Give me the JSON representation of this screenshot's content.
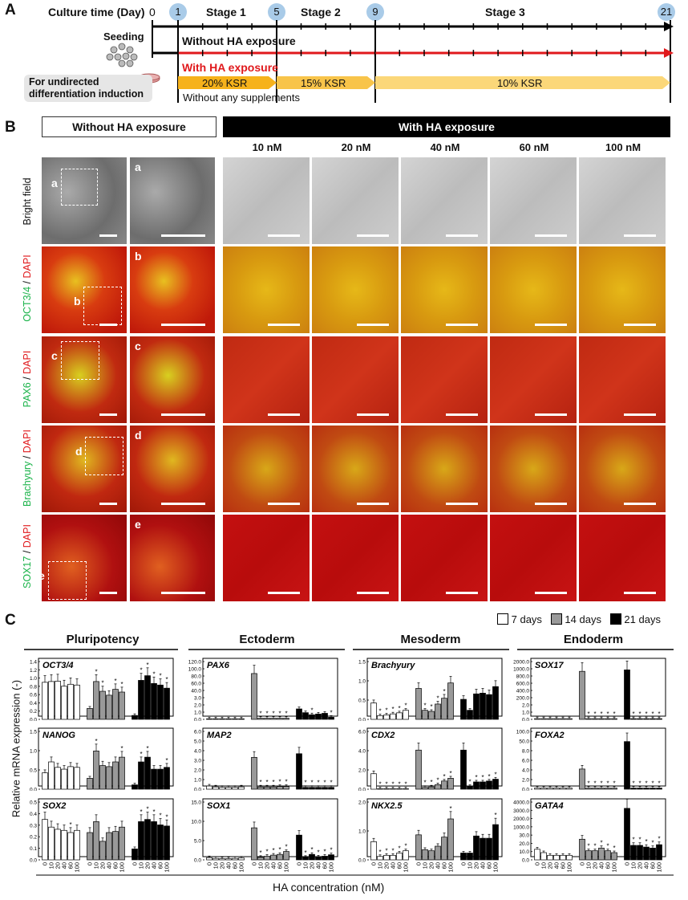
{
  "panelA": {
    "letter": "A",
    "culture_label": "Culture time (Day)",
    "day0": "0",
    "days": [
      "1",
      "5",
      "9",
      "21"
    ],
    "stages": [
      "Stage 1",
      "Stage 2",
      "Stage 3"
    ],
    "seeding": "Seeding",
    "without_label": "Without HA exposure",
    "with_label": "With HA exposure",
    "ksr": [
      "20% KSR",
      "15% KSR",
      "10% KSR"
    ],
    "undirected": "For undirected\ndifferentiation induction",
    "no_supp": "Without any supplements",
    "colors": {
      "black": "#000000",
      "red": "#e0191c",
      "orange": "#f6b21b",
      "light_orange": "#fbd779",
      "circle": "#a9cbe8"
    }
  },
  "panelB": {
    "letter": "B",
    "without_header": "Without HA exposure",
    "with_header": "With HA exposure",
    "concentrations": [
      "10 nM",
      "20 nM",
      "40 nM",
      "60 nM",
      "100 nM"
    ],
    "rows": [
      {
        "marker": "Bright field",
        "dapi": "",
        "inset": "a"
      },
      {
        "marker": "OCT3/4",
        "dapi": "DAPI",
        "inset": "b"
      },
      {
        "marker": "PAX6",
        "dapi": "DAPI",
        "inset": "c"
      },
      {
        "marker": "Brachyury",
        "dapi": "DAPI",
        "inset": "d"
      },
      {
        "marker": "SOX17",
        "dapi": "DAPI",
        "inset": "e"
      }
    ],
    "slash": " /"
  },
  "panelC": {
    "letter": "C",
    "legend": [
      "7 days",
      "14 days",
      "21 days"
    ],
    "ylabel": "Relative mRNA expression (-)",
    "xlabel": "HA concentration (nM)",
    "x_ticks": [
      "0",
      "10",
      "20",
      "40",
      "60",
      "100"
    ],
    "groups": [
      "Pluripotency",
      "Ectoderm",
      "Mesoderm",
      "Endoderm"
    ]
  },
  "chart_data": [
    {
      "type": "bar",
      "gene": "OCT3/4",
      "group": "Pluripotency",
      "categories": [
        "0",
        "10",
        "20",
        "40",
        "60",
        "100"
      ],
      "yticks": [
        "0.0",
        "0.2",
        "0.4",
        "0.6",
        "0.8",
        "1.0",
        "1.2",
        "1.4"
      ],
      "ylim": [
        0,
        1.4
      ],
      "series": [
        {
          "name": "7 days",
          "values": [
            0.95,
            0.97,
            0.98,
            0.85,
            0.9,
            0.88
          ]
        },
        {
          "name": "14 days",
          "values": [
            0.28,
            0.97,
            0.72,
            0.62,
            0.77,
            0.7
          ]
        },
        {
          "name": "21 days",
          "values": [
            0.1,
            1.0,
            1.12,
            0.92,
            0.88,
            0.8
          ]
        }
      ],
      "stars": [
        [],
        [
          1,
          2,
          4,
          5
        ],
        [
          1,
          2,
          3,
          4,
          5
        ]
      ]
    },
    {
      "type": "bar",
      "gene": "PAX6",
      "group": "Ectoderm",
      "categories": [
        "0",
        "10",
        "20",
        "40",
        "60",
        "100"
      ],
      "yticks": [
        "0.0",
        "1.0",
        "2.0",
        "3.0",
        "40.0",
        "60.0",
        "80.0",
        "100.0",
        "120.0"
      ],
      "ylim": [
        0,
        120
      ],
      "axis_break": true,
      "series": [
        {
          "name": "7 days",
          "values": [
            0.05,
            0.05,
            0.05,
            0.05,
            0.05,
            0.05
          ]
        },
        {
          "name": "14 days",
          "values": [
            55,
            0.1,
            0.1,
            0.1,
            0.1,
            0.1
          ]
        },
        {
          "name": "21 days",
          "values": [
            1.5,
            0.8,
            0.5,
            0.6,
            0.7,
            0.2
          ]
        }
      ],
      "stars": [
        [],
        [
          1,
          2,
          3,
          4,
          5
        ],
        [
          2,
          5
        ]
      ]
    },
    {
      "type": "bar",
      "gene": "Brachyury",
      "group": "Mesoderm",
      "categories": [
        "0",
        "10",
        "20",
        "40",
        "60",
        "100"
      ],
      "yticks": [
        "0.0",
        "0.5",
        "1.0",
        "1.5"
      ],
      "ylim": [
        0,
        1.5
      ],
      "series": [
        {
          "name": "7 days",
          "values": [
            0.45,
            0.1,
            0.12,
            0.15,
            0.18,
            0.25
          ]
        },
        {
          "name": "14 days",
          "values": [
            0.85,
            0.25,
            0.22,
            0.42,
            0.58,
            1.0
          ]
        },
        {
          "name": "21 days",
          "values": [
            0.55,
            0.25,
            0.7,
            0.72,
            0.68,
            0.9
          ]
        }
      ],
      "stars": [
        [
          1,
          2,
          3,
          4,
          5
        ],
        [
          1,
          2,
          3,
          4
        ],
        []
      ]
    },
    {
      "type": "bar",
      "gene": "SOX17",
      "group": "Endoderm",
      "categories": [
        "0",
        "10",
        "20",
        "40",
        "60",
        "100"
      ],
      "yticks": [
        "0.0",
        "1.0",
        "2.0",
        "200.0",
        "400.0",
        "600.0",
        "800.0",
        "1000.0",
        "2000.0"
      ],
      "ylim": [
        0,
        2000
      ],
      "axis_break": true,
      "series": [
        {
          "name": "7 days",
          "values": [
            0.1,
            0.1,
            0.1,
            0.1,
            0.1,
            0.1
          ]
        },
        {
          "name": "14 days",
          "values": [
            800,
            0.1,
            0.1,
            0.1,
            0.1,
            0.1
          ]
        },
        {
          "name": "21 days",
          "values": [
            980,
            0.1,
            0.1,
            0.1,
            0.1,
            0.1
          ]
        }
      ],
      "stars": [
        [],
        [
          1,
          2,
          3,
          4,
          5
        ],
        [
          1,
          2,
          3,
          4,
          5
        ]
      ]
    },
    {
      "type": "bar",
      "gene": "NANOG",
      "group": "Pluripotency",
      "categories": [
        "0",
        "10",
        "20",
        "40",
        "60",
        "100"
      ],
      "yticks": [
        "0.0",
        "0.5",
        "1.0",
        "1.5"
      ],
      "ylim": [
        0,
        1.5
      ],
      "series": [
        {
          "name": "7 days",
          "values": [
            0.45,
            0.75,
            0.6,
            0.55,
            0.62,
            0.6
          ]
        },
        {
          "name": "14 days",
          "values": [
            0.3,
            1.05,
            0.65,
            0.62,
            0.75,
            0.88
          ]
        },
        {
          "name": "21 days",
          "values": [
            0.12,
            0.75,
            0.88,
            0.55,
            0.55,
            0.6
          ]
        }
      ],
      "stars": [
        [],
        [
          1,
          5
        ],
        [
          1,
          2,
          5
        ]
      ]
    },
    {
      "type": "bar",
      "gene": "MAP2",
      "group": "Ectoderm",
      "categories": [
        "0",
        "10",
        "20",
        "40",
        "60",
        "100"
      ],
      "yticks": [
        "0.0",
        "1.0",
        "2.0",
        "3.0",
        "4.0",
        "5.0",
        "6.0"
      ],
      "ylim": [
        0,
        6
      ],
      "series": [
        {
          "name": "7 days",
          "values": [
            0.35,
            0.25,
            0.2,
            0.2,
            0.2,
            0.25
          ]
        },
        {
          "name": "14 days",
          "values": [
            3.5,
            0.25,
            0.25,
            0.25,
            0.3,
            0.3
          ]
        },
        {
          "name": "21 days",
          "values": [
            3.9,
            0.2,
            0.2,
            0.2,
            0.2,
            0.2
          ]
        }
      ],
      "stars": [
        [],
        [
          1,
          2,
          3,
          4,
          5
        ],
        [
          1,
          2,
          3,
          4,
          5
        ]
      ]
    },
    {
      "type": "bar",
      "gene": "CDX2",
      "group": "Mesoderm",
      "categories": [
        "0",
        "10",
        "20",
        "40",
        "60",
        "100"
      ],
      "yticks": [
        "0.0",
        "2.0",
        "4.0",
        "6.0"
      ],
      "ylim": [
        0,
        6
      ],
      "series": [
        {
          "name": "7 days",
          "values": [
            1.7,
            0.05,
            0.05,
            0.05,
            0.05,
            0.05
          ]
        },
        {
          "name": "14 days",
          "values": [
            4.3,
            0.2,
            0.25,
            0.5,
            0.9,
            1.2
          ]
        },
        {
          "name": "21 days",
          "values": [
            4.3,
            0.3,
            0.8,
            0.8,
            0.9,
            1.1
          ]
        }
      ],
      "stars": [
        [
          1,
          2,
          3,
          4,
          5
        ],
        [
          1,
          2,
          3,
          4,
          5
        ],
        [
          1,
          2,
          3,
          4,
          5
        ]
      ]
    },
    {
      "type": "bar",
      "gene": "FOXA2",
      "group": "Endoderm",
      "categories": [
        "0",
        "10",
        "20",
        "40",
        "60",
        "100"
      ],
      "yticks": [
        "0.0",
        "2.0",
        "4.0",
        "6.0",
        "8.0",
        "50.0",
        "100.0"
      ],
      "ylim": [
        0,
        100
      ],
      "axis_break": true,
      "series": [
        {
          "name": "7 days",
          "values": [
            0.1,
            0.1,
            0.1,
            0.1,
            0.1,
            0.1
          ]
        },
        {
          "name": "14 days",
          "values": [
            4.5,
            0.1,
            0.1,
            0.1,
            0.1,
            0.1
          ]
        },
        {
          "name": "21 days",
          "values": [
            55,
            0.1,
            0.1,
            0.1,
            0.1,
            0.1
          ]
        }
      ],
      "stars": [
        [],
        [
          1,
          2,
          3,
          4,
          5
        ],
        [
          1,
          2,
          3,
          4,
          5
        ]
      ]
    },
    {
      "type": "bar",
      "gene": "SOX2",
      "group": "Pluripotency",
      "categories": [
        "0",
        "10",
        "20",
        "40",
        "60",
        "100"
      ],
      "yticks": [
        "0.0",
        "0.1",
        "0.2",
        "0.3",
        "0.4",
        "0.5"
      ],
      "ylim": [
        0,
        0.5
      ],
      "series": [
        {
          "name": "7 days",
          "values": [
            0.37,
            0.3,
            0.28,
            0.27,
            0.25,
            0.27
          ]
        },
        {
          "name": "14 days",
          "values": [
            0.25,
            0.35,
            0.17,
            0.25,
            0.26,
            0.3
          ]
        },
        {
          "name": "21 days",
          "values": [
            0.1,
            0.35,
            0.37,
            0.35,
            0.32,
            0.31
          ]
        }
      ],
      "stars": [
        [
          4
        ],
        [],
        [
          1,
          2,
          3,
          4,
          5
        ]
      ]
    },
    {
      "type": "bar",
      "gene": "SOX1",
      "group": "Ectoderm",
      "categories": [
        "0",
        "10",
        "20",
        "40",
        "60",
        "100"
      ],
      "yticks": [
        "0.0",
        "5.0",
        "10.0",
        "15.0"
      ],
      "ylim": [
        0,
        15
      ],
      "series": [
        {
          "name": "7 days",
          "values": [
            0.6,
            0.4,
            0.3,
            0.3,
            0.4,
            0.5
          ]
        },
        {
          "name": "14 days",
          "values": [
            8.8,
            0.7,
            1.0,
            1.3,
            1.5,
            2.3
          ]
        },
        {
          "name": "21 days",
          "values": [
            6.8,
            0.7,
            1.5,
            0.8,
            1.0,
            1.4
          ]
        }
      ],
      "stars": [
        [],
        [
          1,
          2,
          3,
          4,
          5
        ],
        [
          1,
          2,
          3,
          4,
          5
        ]
      ]
    },
    {
      "type": "bar",
      "gene": "NKX2.5",
      "group": "Mesoderm",
      "categories": [
        "0",
        "10",
        "20",
        "40",
        "60",
        "100"
      ],
      "yticks": [
        "0.0",
        "1.0",
        "2.0"
      ],
      "ylim": [
        0,
        2.4
      ],
      "series": [
        {
          "name": "7 days",
          "values": [
            0.8,
            0.15,
            0.2,
            0.2,
            0.3,
            0.4
          ]
        },
        {
          "name": "14 days",
          "values": [
            1.1,
            0.45,
            0.4,
            0.6,
            1.0,
            1.8
          ]
        },
        {
          "name": "21 days",
          "values": [
            0.3,
            0.3,
            1.05,
            0.95,
            0.95,
            1.55
          ]
        }
      ],
      "stars": [
        [
          1,
          2,
          3,
          4,
          5
        ],
        [
          5
        ],
        [
          5
        ]
      ]
    },
    {
      "type": "bar",
      "gene": "GATA4",
      "group": "Endoderm",
      "categories": [
        "0",
        "10",
        "20",
        "40",
        "60",
        "100"
      ],
      "yticks": [
        "0.0",
        "10.0",
        "20.0",
        "30.0",
        "1000.0",
        "2000.0",
        "3000.0",
        "4000.0"
      ],
      "ylim": [
        0,
        4000
      ],
      "axis_break": true,
      "series": [
        {
          "name": "7 days",
          "values": [
            4,
            2,
            1,
            1,
            1,
            1
          ]
        },
        {
          "name": "14 days",
          "values": [
            22,
            3,
            3,
            5,
            3,
            2
          ]
        },
        {
          "name": "21 days",
          "values": [
            2500,
            8,
            8,
            6,
            5,
            9
          ]
        }
      ],
      "stars": [
        [],
        [
          1,
          2,
          3,
          4,
          5
        ],
        [
          1,
          2,
          3,
          4,
          5
        ]
      ]
    }
  ]
}
